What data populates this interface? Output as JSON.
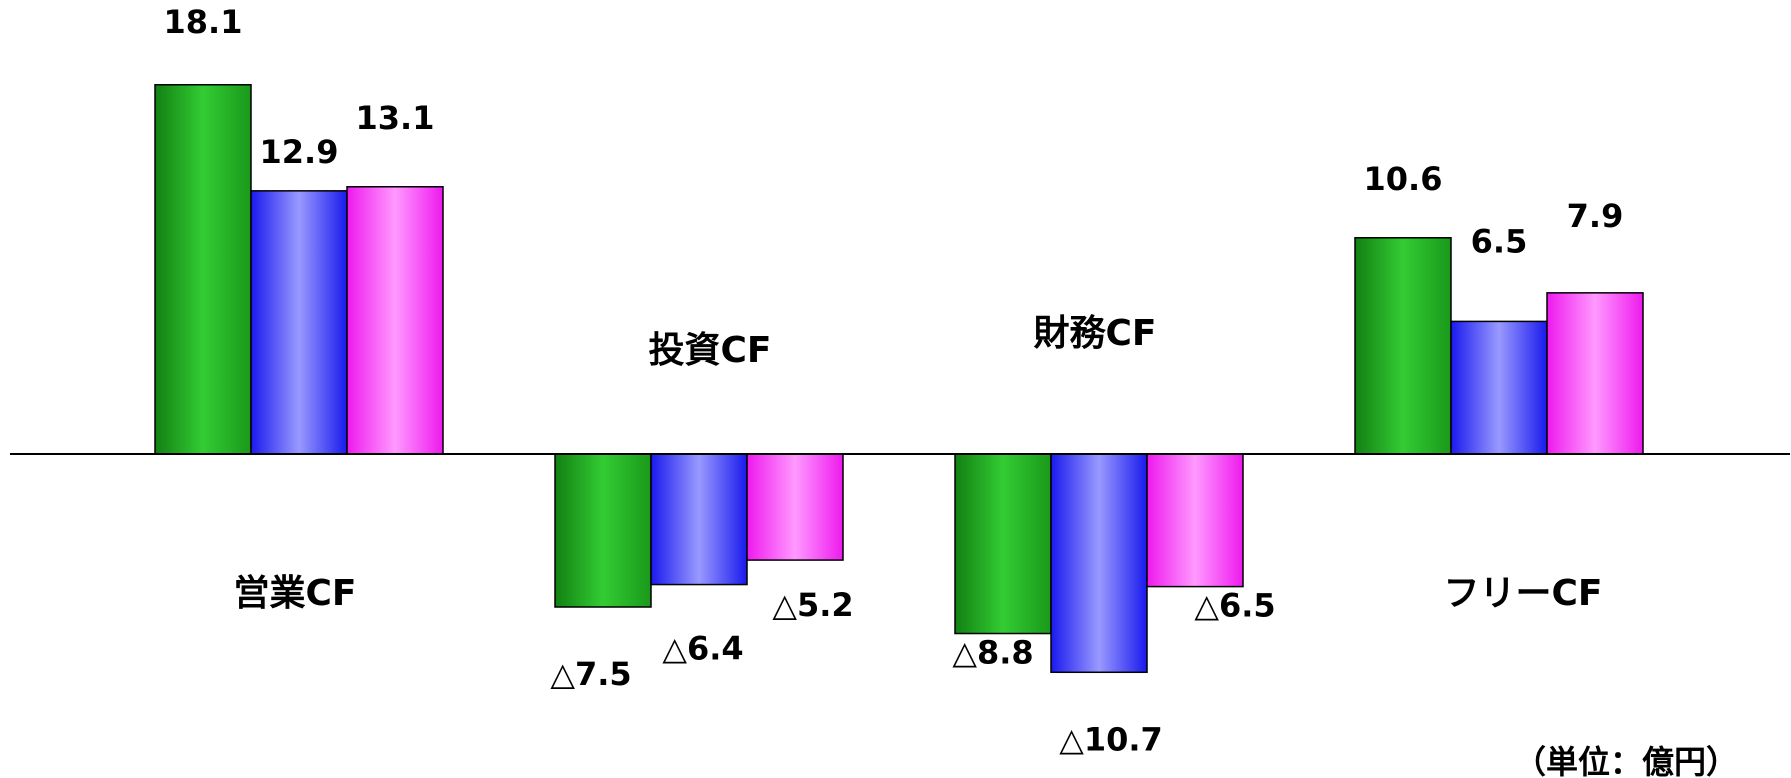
{
  "chart_data": {
    "type": "bar",
    "categories": [
      "営業CF",
      "投資CF",
      "財務CF",
      "フリーCF"
    ],
    "series": [
      {
        "values": [
          18.1,
          -7.5,
          -8.8,
          10.6
        ],
        "labels": [
          "18.1",
          "△7.5",
          "△8.8",
          "10.6"
        ]
      },
      {
        "values": [
          12.9,
          -6.4,
          -10.7,
          6.5
        ],
        "labels": [
          "12.9",
          "△6.4",
          "△10.7",
          "6.5"
        ]
      },
      {
        "values": [
          13.1,
          -5.2,
          -6.5,
          7.9
        ],
        "labels": [
          "13.1",
          "△5.2",
          "△6.5",
          "7.9"
        ]
      }
    ],
    "unit_label": "（単位：億円）",
    "ylim": [
      -11,
      22
    ],
    "colors": {
      "green": [
        "#1a8c1a",
        "#33cc33",
        "#1a991a"
      ],
      "blue": [
        "#2222ee",
        "#9999ff",
        "#2222ee"
      ],
      "magenta": [
        "#ee22ee",
        "#ff99ff",
        "#ee22ee"
      ]
    }
  }
}
